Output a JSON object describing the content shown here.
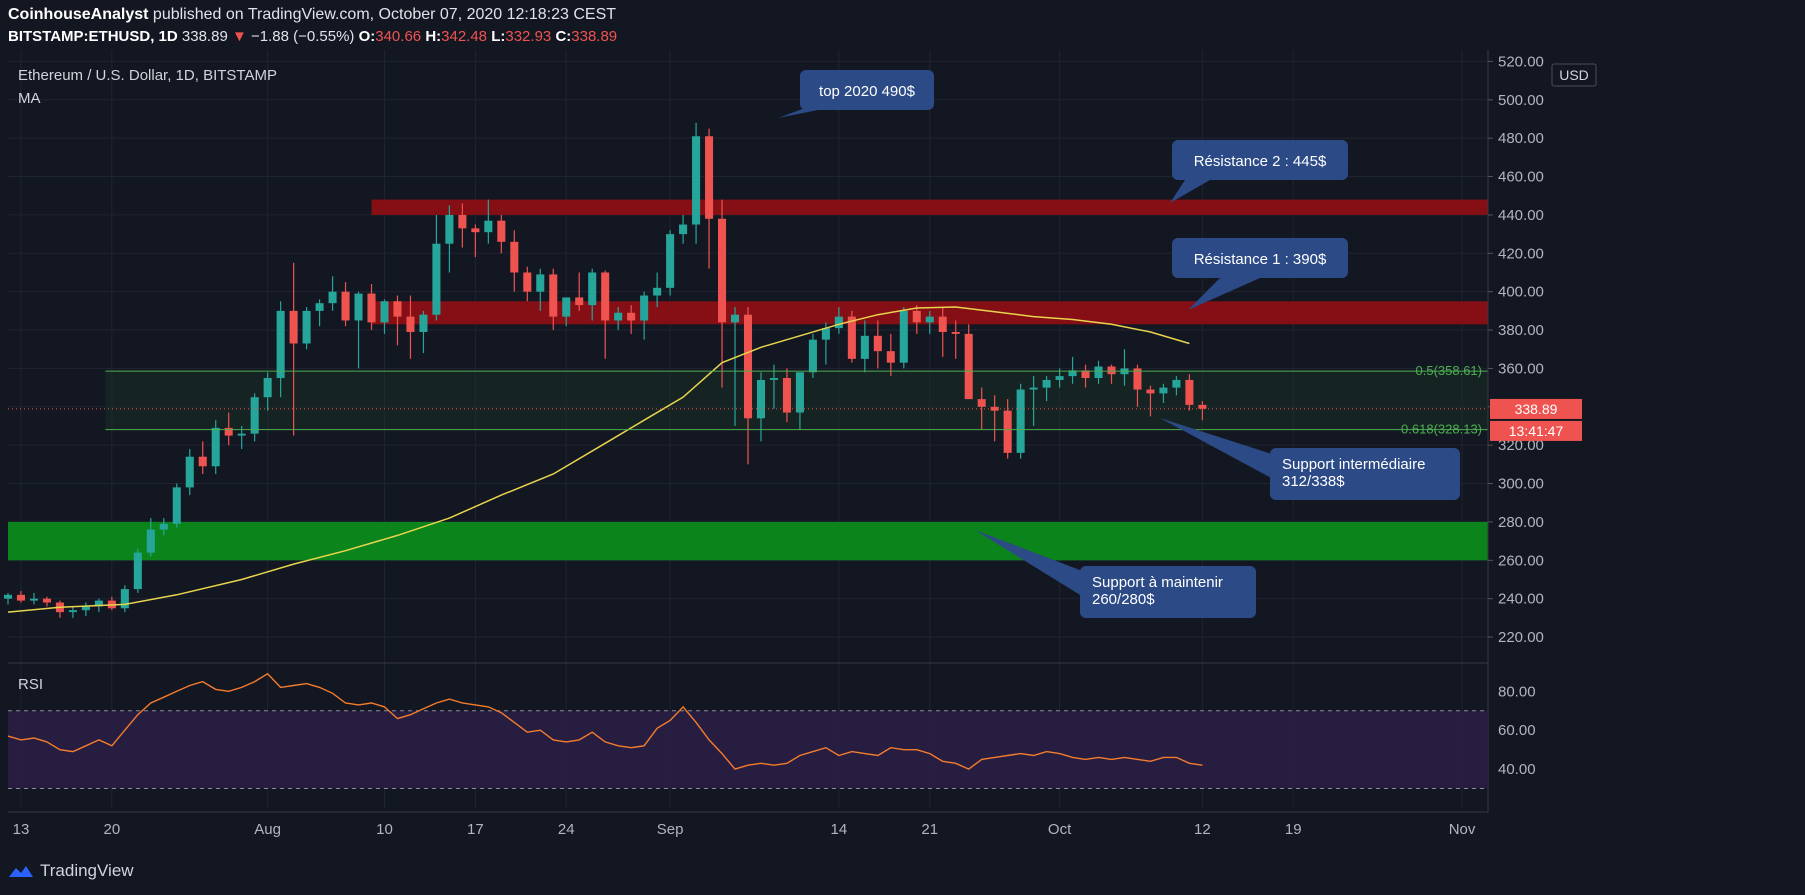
{
  "header": {
    "author": "CoinhouseAnalyst",
    "published": "published on TradingView.com, October 07, 2020 12:18:23 CEST",
    "symbol": "BITSTAMP:ETHUSD, 1D",
    "last": "338.89",
    "change": "−1.88 (−0.55%)",
    "o_label": "O:",
    "o": "340.66",
    "h_label": "H:",
    "h": "342.48",
    "l_label": "L:",
    "l": "332.93",
    "c_label": "C:",
    "c": "338.89"
  },
  "legend": {
    "title": "Ethereum / U.S. Dollar, 1D, BITSTAMP",
    "ma": "MA",
    "rsi": "RSI",
    "currency": "USD"
  },
  "price_tags": {
    "last": "338.89",
    "countdown": "13:41:47"
  },
  "footer": {
    "brand": "TradingView"
  },
  "annotations": [
    {
      "id": "top",
      "text": [
        "top 2020 490$"
      ]
    },
    {
      "id": "res2",
      "text": [
        "Résistance 2 : 445$"
      ]
    },
    {
      "id": "res1",
      "text": [
        "Résistance 1 : 390$"
      ]
    },
    {
      "id": "sup1",
      "text": [
        "Support intermédiaire",
        "312/338$"
      ]
    },
    {
      "id": "sup2",
      "text": [
        "Support à maintenir",
        "260/280$"
      ]
    }
  ],
  "colors": {
    "bg": "#131722",
    "up": "#26a69a",
    "down": "#ef5350",
    "ma": "#e8d44d",
    "rsi": "#f57c2c",
    "resistance": "#8b0f14",
    "support": "#0c8a1c",
    "fib": "#4caf50",
    "bubble": "#2b4a86"
  },
  "chart_data": {
    "type": "candlestick",
    "title": "Ethereum / U.S. Dollar, 1D, BITSTAMP",
    "price_axis": {
      "ticks": [
        220,
        240,
        260,
        280,
        300,
        320,
        340,
        360,
        380,
        400,
        420,
        440,
        460,
        480,
        500,
        520
      ],
      "range": [
        207,
        527
      ]
    },
    "time_axis": {
      "labels": [
        "13",
        "20",
        "Aug",
        "10",
        "17",
        "24",
        "Sep",
        "14",
        "21",
        "Oct",
        "12",
        "19",
        "Nov"
      ],
      "label_day_index": [
        0,
        7,
        19,
        28,
        35,
        42,
        50,
        63,
        70,
        80,
        91,
        98,
        111
      ],
      "range_days": [
        -1,
        113
      ]
    },
    "zones": [
      {
        "name": "Résistance 2",
        "from": 440,
        "to": 448,
        "start_day": 27
      },
      {
        "name": "Résistance 1",
        "from": 383,
        "to": 395,
        "start_day": 27
      },
      {
        "name": "Support à maintenir",
        "from": 260,
        "to": 280
      }
    ],
    "fib_levels": [
      {
        "label": "0.5(358.61)",
        "value": 358.61
      },
      {
        "label": "0.618(328.13)",
        "value": 328.13
      }
    ],
    "last_price": 338.89,
    "candles": [
      [
        -1,
        240,
        243,
        237,
        242
      ],
      [
        0,
        242,
        244,
        238,
        239
      ],
      [
        1,
        239,
        243,
        237,
        240
      ],
      [
        2,
        240,
        241,
        236,
        238
      ],
      [
        3,
        238,
        239,
        230,
        233
      ],
      [
        4,
        233,
        236,
        230,
        234
      ],
      [
        5,
        234,
        238,
        231,
        236
      ],
      [
        6,
        236,
        240,
        233,
        239
      ],
      [
        7,
        239,
        241,
        234,
        235
      ],
      [
        8,
        235,
        247,
        233,
        245
      ],
      [
        9,
        245,
        266,
        243,
        264
      ],
      [
        10,
        264,
        282,
        262,
        276
      ],
      [
        11,
        276,
        282,
        273,
        279
      ],
      [
        12,
        279,
        300,
        277,
        298
      ],
      [
        13,
        298,
        318,
        294,
        314
      ],
      [
        14,
        314,
        322,
        305,
        309
      ],
      [
        15,
        309,
        333,
        305,
        329
      ],
      [
        16,
        329,
        337,
        320,
        325
      ],
      [
        17,
        325,
        330,
        318,
        326
      ],
      [
        18,
        326,
        347,
        322,
        345
      ],
      [
        19,
        345,
        358,
        338,
        355
      ],
      [
        20,
        355,
        395,
        345,
        390
      ],
      [
        21,
        390,
        415,
        325,
        373
      ],
      [
        22,
        373,
        392,
        370,
        390
      ],
      [
        23,
        390,
        396,
        382,
        394
      ],
      [
        24,
        394,
        408,
        390,
        400
      ],
      [
        25,
        400,
        405,
        382,
        385
      ],
      [
        26,
        385,
        400,
        360,
        399
      ],
      [
        27,
        399,
        404,
        380,
        384
      ],
      [
        28,
        384,
        396,
        378,
        395
      ],
      [
        29,
        395,
        398,
        372,
        387
      ],
      [
        30,
        387,
        398,
        365,
        379
      ],
      [
        31,
        379,
        390,
        368,
        388
      ],
      [
        32,
        388,
        440,
        385,
        425
      ],
      [
        33,
        425,
        445,
        410,
        440
      ],
      [
        34,
        440,
        446,
        423,
        433
      ],
      [
        35,
        433,
        435,
        418,
        431
      ],
      [
        36,
        431,
        448,
        425,
        437
      ],
      [
        37,
        437,
        440,
        420,
        426
      ],
      [
        38,
        426,
        432,
        400,
        410
      ],
      [
        39,
        410,
        413,
        395,
        400
      ],
      [
        40,
        400,
        412,
        390,
        409
      ],
      [
        41,
        409,
        412,
        380,
        387
      ],
      [
        42,
        387,
        396,
        382,
        397
      ],
      [
        43,
        397,
        410,
        390,
        393
      ],
      [
        44,
        393,
        412,
        385,
        410
      ],
      [
        45,
        410,
        411,
        365,
        385
      ],
      [
        46,
        385,
        392,
        380,
        389
      ],
      [
        47,
        389,
        393,
        378,
        385
      ],
      [
        48,
        385,
        400,
        375,
        398
      ],
      [
        49,
        398,
        410,
        392,
        402
      ],
      [
        50,
        402,
        432,
        398,
        430
      ],
      [
        51,
        430,
        440,
        425,
        435
      ],
      [
        52,
        435,
        488,
        425,
        481
      ],
      [
        53,
        481,
        485,
        412,
        438
      ],
      [
        54,
        438,
        448,
        350,
        384
      ],
      [
        55,
        384,
        392,
        330,
        388
      ],
      [
        56,
        388,
        392,
        310,
        334
      ],
      [
        57,
        334,
        358,
        322,
        354
      ],
      [
        58,
        354,
        362,
        339,
        355
      ],
      [
        59,
        355,
        360,
        332,
        337
      ],
      [
        60,
        337,
        356,
        328,
        358
      ],
      [
        61,
        358,
        378,
        355,
        375
      ],
      [
        62,
        375,
        384,
        362,
        381
      ],
      [
        63,
        381,
        392,
        378,
        387
      ],
      [
        64,
        387,
        390,
        363,
        365
      ],
      [
        65,
        365,
        385,
        358,
        377
      ],
      [
        66,
        377,
        385,
        360,
        369
      ],
      [
        67,
        369,
        378,
        356,
        363
      ],
      [
        68,
        363,
        392,
        360,
        390
      ],
      [
        69,
        390,
        393,
        378,
        384
      ],
      [
        70,
        384,
        390,
        378,
        387
      ],
      [
        71,
        387,
        392,
        366,
        379
      ],
      [
        72,
        379,
        385,
        365,
        378
      ],
      [
        73,
        378,
        383,
        345,
        344
      ],
      [
        74,
        344,
        350,
        328,
        340
      ],
      [
        75,
        340,
        346,
        322,
        338
      ],
      [
        76,
        338,
        344,
        313,
        316
      ],
      [
        77,
        316,
        352,
        313,
        349
      ],
      [
        78,
        349,
        356,
        330,
        350
      ],
      [
        79,
        350,
        356,
        343,
        354
      ],
      [
        80,
        354,
        360,
        350,
        356
      ],
      [
        81,
        356,
        366,
        352,
        359
      ],
      [
        82,
        359,
        362,
        350,
        355
      ],
      [
        83,
        355,
        364,
        352,
        361
      ],
      [
        84,
        361,
        362,
        352,
        357
      ],
      [
        85,
        357,
        370,
        351,
        360
      ],
      [
        86,
        360,
        362,
        340,
        349
      ],
      [
        87,
        349,
        351,
        335,
        347
      ],
      [
        88,
        347,
        352,
        342,
        350
      ],
      [
        89,
        350,
        356,
        346,
        354
      ],
      [
        90,
        354,
        357,
        338,
        341
      ],
      [
        91,
        341,
        343,
        333,
        339
      ]
    ],
    "ma_series": [
      [
        -1,
        233
      ],
      [
        3,
        235.5
      ],
      [
        8,
        237
      ],
      [
        12,
        242
      ],
      [
        17,
        250
      ],
      [
        21,
        258
      ],
      [
        25,
        265
      ],
      [
        29,
        273
      ],
      [
        33,
        282
      ],
      [
        37,
        294
      ],
      [
        41,
        305
      ],
      [
        45,
        321
      ],
      [
        48,
        333
      ],
      [
        51,
        345
      ],
      [
        54,
        363
      ],
      [
        57,
        371
      ],
      [
        60,
        377
      ],
      [
        63,
        383
      ],
      [
        66,
        388
      ],
      [
        69,
        391.5
      ],
      [
        72,
        392
      ],
      [
        75,
        389.5
      ],
      [
        78,
        387
      ],
      [
        81,
        385.5
      ],
      [
        84,
        383
      ],
      [
        87,
        379
      ],
      [
        90,
        373
      ]
    ],
    "rsi": {
      "ticks": [
        40,
        60,
        80
      ],
      "band": [
        30,
        70
      ],
      "range": [
        20,
        92
      ],
      "values": [
        [
          -1,
          57
        ],
        [
          0,
          55
        ],
        [
          1,
          56
        ],
        [
          2,
          54
        ],
        [
          3,
          50
        ],
        [
          4,
          49
        ],
        [
          5,
          52
        ],
        [
          6,
          55
        ],
        [
          7,
          52
        ],
        [
          8,
          60
        ],
        [
          9,
          68
        ],
        [
          10,
          74
        ],
        [
          11,
          77
        ],
        [
          12,
          80
        ],
        [
          13,
          83
        ],
        [
          14,
          85
        ],
        [
          15,
          81
        ],
        [
          16,
          80
        ],
        [
          17,
          82
        ],
        [
          18,
          85
        ],
        [
          19,
          89
        ],
        [
          20,
          82
        ],
        [
          21,
          83
        ],
        [
          22,
          84
        ],
        [
          23,
          82
        ],
        [
          24,
          79
        ],
        [
          25,
          74
        ],
        [
          26,
          73
        ],
        [
          27,
          74
        ],
        [
          28,
          72
        ],
        [
          29,
          66
        ],
        [
          30,
          68
        ],
        [
          31,
          71
        ],
        [
          32,
          74
        ],
        [
          33,
          76
        ],
        [
          34,
          74
        ],
        [
          35,
          73
        ],
        [
          36,
          72
        ],
        [
          37,
          69
        ],
        [
          38,
          64
        ],
        [
          39,
          59
        ],
        [
          40,
          60
        ],
        [
          41,
          55
        ],
        [
          42,
          54
        ],
        [
          43,
          55
        ],
        [
          44,
          59
        ],
        [
          45,
          54
        ],
        [
          46,
          52
        ],
        [
          47,
          51
        ],
        [
          48,
          52
        ],
        [
          49,
          61
        ],
        [
          50,
          65
        ],
        [
          51,
          72
        ],
        [
          52,
          64
        ],
        [
          53,
          55
        ],
        [
          54,
          48
        ],
        [
          55,
          40
        ],
        [
          56,
          42
        ],
        [
          57,
          43
        ],
        [
          58,
          42
        ],
        [
          59,
          43
        ],
        [
          60,
          47
        ],
        [
          61,
          49
        ],
        [
          62,
          51
        ],
        [
          63,
          47
        ],
        [
          64,
          49
        ],
        [
          65,
          48
        ],
        [
          66,
          47
        ],
        [
          67,
          51
        ],
        [
          68,
          50
        ],
        [
          69,
          50
        ],
        [
          70,
          48
        ],
        [
          71,
          44
        ],
        [
          72,
          43
        ],
        [
          73,
          40
        ],
        [
          74,
          45
        ],
        [
          75,
          46
        ],
        [
          76,
          47
        ],
        [
          77,
          48
        ],
        [
          78,
          47
        ],
        [
          79,
          49
        ],
        [
          80,
          48
        ],
        [
          81,
          46
        ],
        [
          82,
          45
        ],
        [
          83,
          46
        ],
        [
          84,
          45
        ],
        [
          85,
          46
        ],
        [
          86,
          45
        ],
        [
          87,
          44
        ],
        [
          88,
          46
        ],
        [
          89,
          46
        ],
        [
          90,
          43
        ],
        [
          91,
          42
        ]
      ]
    }
  }
}
